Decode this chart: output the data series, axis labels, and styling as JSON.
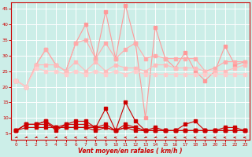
{
  "x": [
    0,
    1,
    2,
    3,
    4,
    5,
    6,
    7,
    8,
    9,
    10,
    11,
    12,
    13,
    14,
    15,
    16,
    17,
    18,
    19,
    20,
    21,
    22,
    23
  ],
  "line_pink1": [
    22,
    20,
    27,
    32,
    27,
    25,
    34,
    40,
    29,
    44,
    29,
    46,
    34,
    10,
    39,
    29,
    26,
    31,
    25,
    22,
    25,
    33,
    27,
    28
  ],
  "line_pink2": [
    22,
    20,
    27,
    32,
    27,
    25,
    34,
    35,
    29,
    34,
    29,
    32,
    34,
    29,
    30,
    29,
    29,
    29,
    29,
    25,
    26,
    28,
    28,
    28
  ],
  "line_pink3": [
    22,
    20,
    27,
    27,
    27,
    25,
    28,
    25,
    28,
    25,
    27,
    26,
    26,
    25,
    27,
    27,
    26,
    26,
    26,
    25,
    25,
    25,
    26,
    27
  ],
  "line_pink4": [
    22,
    20,
    26,
    25,
    25,
    24,
    25,
    24,
    25,
    24,
    25,
    24,
    25,
    24,
    24,
    24,
    24,
    24,
    24,
    24,
    24,
    24,
    24,
    24
  ],
  "line_red1": [
    6,
    8,
    8,
    9,
    6,
    8,
    9,
    9,
    7,
    13,
    6,
    15,
    9,
    6,
    7,
    6,
    6,
    8,
    9,
    6,
    6,
    7,
    7,
    6
  ],
  "line_red2": [
    6,
    8,
    8,
    9,
    7,
    8,
    8,
    8,
    7,
    8,
    6,
    8,
    7,
    6,
    6,
    6,
    6,
    6,
    6,
    6,
    6,
    6,
    6,
    6
  ],
  "line_red3": [
    6,
    8,
    8,
    8,
    7,
    7,
    7,
    7,
    7,
    7,
    6,
    7,
    7,
    6,
    6,
    6,
    6,
    6,
    6,
    6,
    6,
    6,
    6,
    6
  ],
  "line_red4": [
    6,
    7,
    7,
    7,
    7,
    7,
    7,
    7,
    6,
    7,
    6,
    7,
    6,
    6,
    6,
    6,
    6,
    6,
    6,
    6,
    6,
    6,
    6,
    6
  ],
  "bg_color": "#cceee8",
  "grid_color": "#ffffff",
  "pink1_color": "#ff9999",
  "pink2_color": "#ffaaaa",
  "pink3_color": "#ffbbbb",
  "pink4_color": "#ffcccc",
  "red_color": "#cc0000",
  "xlabel": "Vent moyen/en rafales ( km/h )",
  "ylim": [
    3,
    47
  ],
  "xlim": [
    -0.5,
    23.5
  ],
  "yticks": [
    5,
    10,
    15,
    20,
    25,
    30,
    35,
    40,
    45
  ],
  "xticks": [
    0,
    1,
    2,
    3,
    4,
    5,
    6,
    7,
    8,
    9,
    10,
    11,
    12,
    13,
    14,
    15,
    16,
    17,
    18,
    19,
    20,
    21,
    22,
    23
  ],
  "wind_dirs": [
    225,
    225,
    225,
    225,
    225,
    270,
    270,
    270,
    270,
    270,
    270,
    270,
    225,
    225,
    225,
    225,
    270,
    270,
    270,
    270,
    270,
    270,
    270,
    270
  ]
}
